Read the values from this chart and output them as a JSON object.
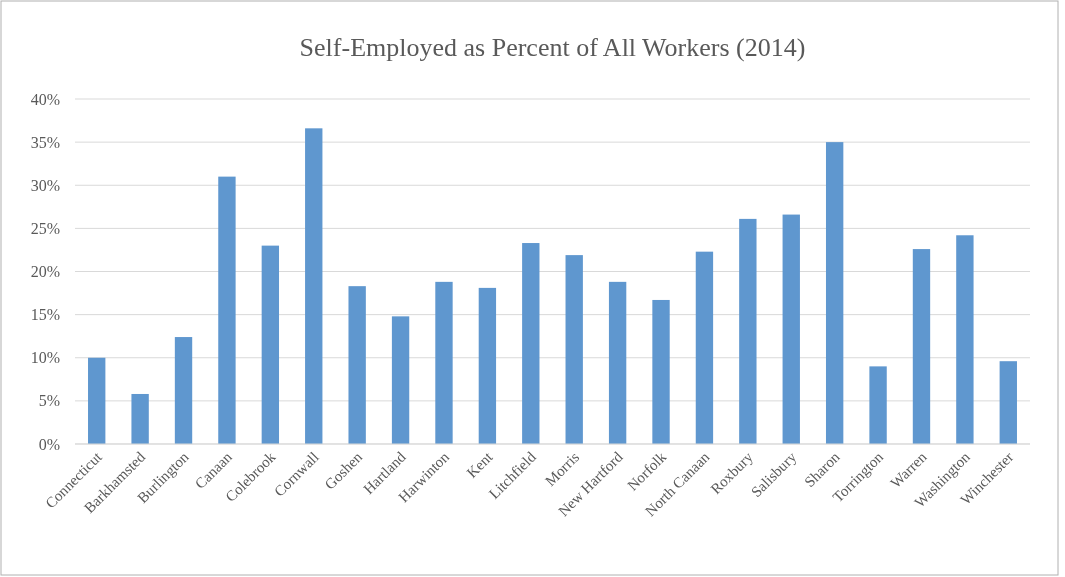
{
  "chart_data": {
    "type": "bar",
    "title": "Self-Employed as Percent of All Workers (2014)",
    "categories": [
      "Connecticut",
      "Barkhamsted",
      "Burlington",
      "Canaan",
      "Colebrook",
      "Cornwall",
      "Goshen",
      "Hartland",
      "Harwinton",
      "Kent",
      "Litchfield",
      "Morris",
      "New Hartford",
      "Norfolk",
      "North Canaan",
      "Roxbury",
      "Salisbury",
      "Sharon",
      "Torrington",
      "Warren",
      "Washington",
      "Winchester"
    ],
    "values": [
      10.0,
      5.8,
      12.4,
      31.0,
      23.0,
      36.6,
      18.3,
      14.8,
      18.8,
      18.1,
      23.3,
      21.9,
      18.8,
      16.7,
      22.3,
      26.1,
      26.6,
      35.0,
      9.0,
      22.6,
      24.2,
      9.6
    ],
    "color": "#5f97cf",
    "ylim": [
      0,
      40
    ],
    "yticks": [
      {
        "value": 0,
        "label": "0%"
      },
      {
        "value": 5,
        "label": "5%"
      },
      {
        "value": 10,
        "label": "10%"
      },
      {
        "value": 15,
        "label": "15%"
      },
      {
        "value": 20,
        "label": "20%"
      },
      {
        "value": 25,
        "label": "25%"
      },
      {
        "value": 30,
        "label": "30%"
      },
      {
        "value": 35,
        "label": "35%"
      },
      {
        "value": 40,
        "label": "40%"
      }
    ],
    "grid": "y"
  }
}
